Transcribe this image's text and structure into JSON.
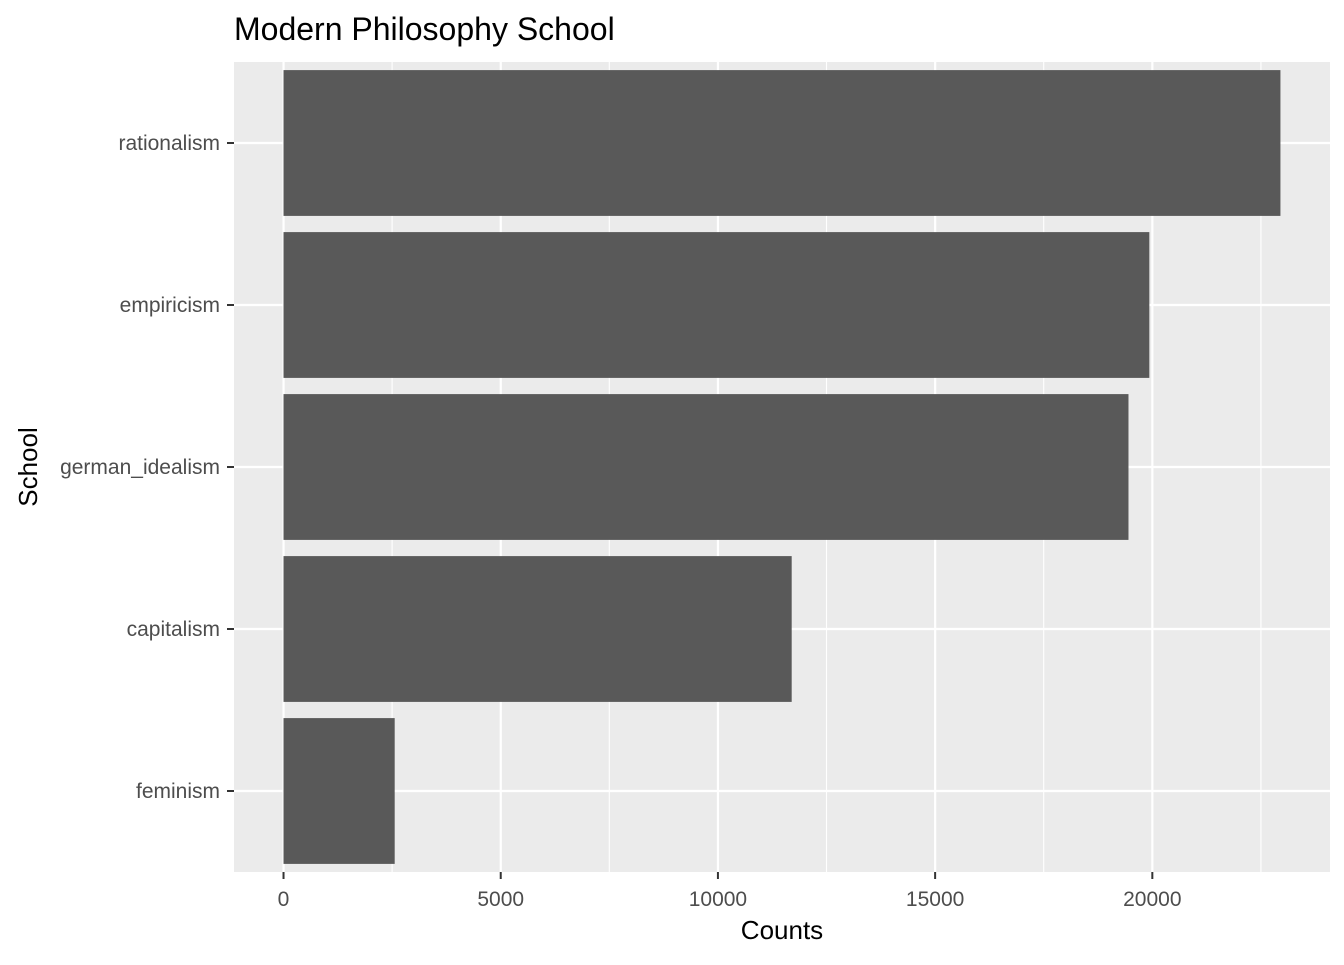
{
  "chart_data": {
    "type": "bar",
    "orientation": "horizontal",
    "title": "Modern Philosophy School",
    "xlabel": "Counts",
    "ylabel": "School",
    "categories": [
      "rationalism",
      "empiricism",
      "german_idealism",
      "capitalism",
      "feminism"
    ],
    "values": [
      22949,
      19931,
      19451,
      11698,
      2559
    ],
    "xlim": [
      -1140,
      24090
    ],
    "x_ticks": [
      0,
      5000,
      10000,
      15000,
      20000
    ],
    "x_tick_labels": [
      "0",
      "5000",
      "10000",
      "15000",
      "20000"
    ],
    "grid": true,
    "legend": "none",
    "colors": {
      "bar": "#595959",
      "panel": "#ebebeb",
      "grid_major": "#ffffff",
      "tick_text": "#4d4d4d",
      "tick_mark": "#333333"
    }
  }
}
